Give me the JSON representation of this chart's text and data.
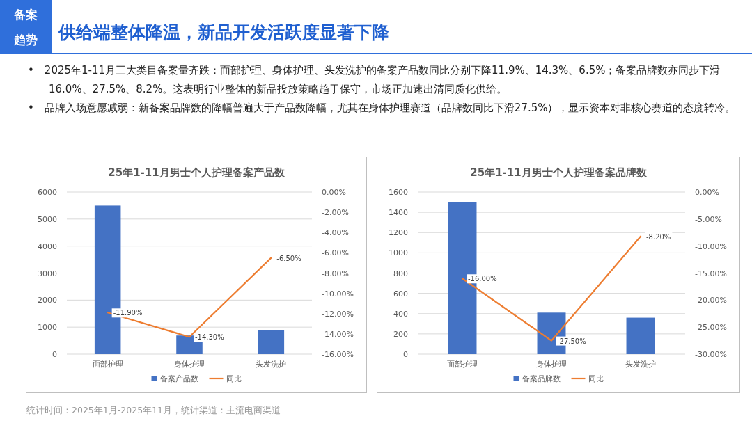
{
  "chart_data": [
    {
      "type": "other",
      "title": "供给端整体降温，新品开发活跃度显著下降",
      "annotations": [
        "备案",
        "趋势",
        "•　2025年1-11月三大类目备案量齐跌：面部护理、身体护理、头发洗护的备案产品数同比分别下降11.9%、14.3%、6.5%；备案品牌数亦同步下滑16.0%、27.5%、8.2%。这表明行业整体的新品投放策略趋于保守，市场正加速出清同质化供给。",
        "•　品牌入场意愿减弱：新备案品牌数的降幅普遍大于产品数降幅，尤其在身体护理赛道（品牌数同比下滑27.5%），显示资本对非核心赛道的态度转冷。"
      ]
    },
    {
      "type": "bar",
      "title": "25年1-11月男士个人护理备案产品数",
      "categories": [
        "面部护理",
        "身体护理",
        "头发洗护"
      ],
      "series": [
        {
          "name": "备案产品数",
          "type": "bar",
          "color": "#4472c4",
          "values": [
            5500,
            690,
            900
          ]
        },
        {
          "name": "同比",
          "type": "line",
          "axis": "y2",
          "color": "#ed7d31",
          "values": [
            -11.9,
            -14.3,
            -6.5
          ],
          "value_labels": [
            "-11.90%",
            "-14.30%",
            "-6.50%"
          ]
        }
      ],
      "ylim": [
        0,
        6000
      ],
      "yticks": [
        0,
        1000,
        2000,
        3000,
        4000,
        5000,
        6000
      ],
      "y2lim": [
        -16,
        0
      ],
      "y2ticks": [
        {
          "value": 0,
          "label": "0.00%"
        },
        {
          "value": -2,
          "label": "-2.00%"
        },
        {
          "value": -4,
          "label": "-4.00%"
        },
        {
          "value": -6,
          "label": "-6.00%"
        },
        {
          "value": -8,
          "label": "-8.00%"
        },
        {
          "value": -10,
          "label": "-10.00%"
        },
        {
          "value": -12,
          "label": "-12.00%"
        },
        {
          "value": -14,
          "label": "-14.00%"
        },
        {
          "value": -16,
          "label": "-16.00%"
        }
      ],
      "grid": "y",
      "legend": "bottom"
    },
    {
      "type": "bar",
      "title": "25年1-11月男士个人护理备案品牌数",
      "categories": [
        "面部护理",
        "身体护理",
        "头发洗护"
      ],
      "series": [
        {
          "name": "备案品牌数",
          "type": "bar",
          "color": "#4472c4",
          "values": [
            1500,
            410,
            360
          ]
        },
        {
          "name": "同比",
          "type": "line",
          "axis": "y2",
          "color": "#ed7d31",
          "values": [
            -16.0,
            -27.5,
            -8.2
          ],
          "value_labels": [
            "-16.00%",
            "-27.50%",
            "-8.20%"
          ]
        }
      ],
      "ylim": [
        0,
        1600
      ],
      "yticks": [
        0,
        200,
        400,
        600,
        800,
        1000,
        1200,
        1400,
        1600
      ],
      "y2lim": [
        -30,
        0
      ],
      "y2ticks": [
        {
          "value": 0,
          "label": "0.00%"
        },
        {
          "value": -5,
          "label": "-5.00%"
        },
        {
          "value": -10,
          "label": "-10.00%"
        },
        {
          "value": -15,
          "label": "-15.00%"
        },
        {
          "value": -20,
          "label": "-20.00%"
        },
        {
          "value": -25,
          "label": "-25.00%"
        },
        {
          "value": -30,
          "label": "-30.00%"
        }
      ],
      "grid": "y",
      "legend": "bottom",
      "annotations": [
        "统计时间：2025年1月-2025年11月，统计渠道：主流电商渠道"
      ]
    }
  ]
}
